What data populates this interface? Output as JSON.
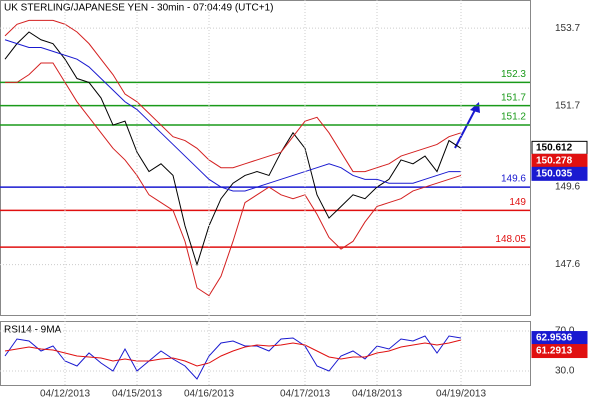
{
  "chart_data": [
    {
      "type": "line",
      "title": "UK STERLING/JAPANESE YEN - 30min - 07:04:49 (UTC+1)",
      "ylim": [
        146.3,
        154.4
      ],
      "yticks": [
        147.6,
        149.6,
        151.7,
        153.7
      ],
      "grid": true,
      "series": [
        {
          "name": "Price",
          "color": "#000000",
          "values": [
            152.9,
            153.3,
            153.6,
            153.4,
            153.3,
            152.9,
            152.4,
            152.3,
            151.9,
            151.2,
            151.3,
            150.5,
            150.0,
            150.2,
            149.9,
            148.6,
            147.6,
            148.6,
            149.3,
            149.7,
            149.9,
            150.0,
            149.9,
            150.5,
            151.0,
            150.6,
            149.4,
            148.8,
            149.1,
            149.4,
            149.3,
            149.6,
            149.8,
            150.3,
            150.2,
            150.4,
            150.0,
            150.8,
            150.6
          ]
        },
        {
          "name": "Upper",
          "color": "#d42020",
          "values": [
            153.5,
            153.8,
            153.9,
            153.9,
            153.9,
            153.8,
            153.6,
            153.3,
            152.9,
            152.5,
            152.0,
            151.8,
            151.5,
            151.2,
            150.9,
            150.8,
            150.6,
            150.3,
            150.1,
            150.1,
            150.2,
            150.3,
            150.4,
            150.5,
            150.9,
            151.3,
            151.4,
            151.0,
            150.5,
            150.0,
            150.0,
            150.1,
            150.2,
            150.4,
            150.5,
            150.6,
            150.7,
            150.9,
            151.0
          ]
        },
        {
          "name": "Lower",
          "color": "#d42020",
          "values": [
            152.3,
            152.3,
            152.5,
            152.8,
            152.8,
            152.3,
            151.8,
            151.4,
            151.0,
            150.6,
            150.3,
            149.9,
            149.4,
            149.2,
            149.0,
            148.2,
            147.0,
            146.8,
            147.3,
            148.2,
            149.2,
            149.4,
            149.6,
            149.4,
            149.3,
            149.4,
            148.9,
            148.3,
            148.0,
            148.2,
            148.7,
            149.1,
            149.2,
            149.3,
            149.5,
            149.6,
            149.7,
            149.8,
            149.9
          ]
        },
        {
          "name": "MA",
          "color": "#1a1ad0",
          "values": [
            153.4,
            153.3,
            153.2,
            153.2,
            153.1,
            153.0,
            152.9,
            152.7,
            152.4,
            152.1,
            151.8,
            151.6,
            151.3,
            151.0,
            150.7,
            150.4,
            150.1,
            149.8,
            149.6,
            149.5,
            149.5,
            149.6,
            149.7,
            149.8,
            149.9,
            150.0,
            150.1,
            150.2,
            150.1,
            149.9,
            149.8,
            149.8,
            149.7,
            149.7,
            149.7,
            149.8,
            149.9,
            150.0,
            150.0
          ]
        }
      ],
      "levels": [
        {
          "value": 152.3,
          "color": "#1a9a1a"
        },
        {
          "value": 151.7,
          "color": "#1a9a1a"
        },
        {
          "value": 151.2,
          "color": "#1a9a1a"
        },
        {
          "value": 149.6,
          "color": "#1a1ad0"
        },
        {
          "value": 149,
          "color": "#e01010"
        },
        {
          "value": 148.05,
          "color": "#e01010"
        }
      ],
      "markers": [
        {
          "value": 150.612,
          "color": "#ffffff"
        },
        {
          "value": 150.278,
          "color": "#e01010"
        },
        {
          "value": 150.035,
          "color": "#1a1ad0"
        }
      ]
    },
    {
      "type": "line",
      "title": "RSI14 - 9MA",
      "ylim": [
        16,
        79
      ],
      "yticks": [
        {
          "value": 30,
          "label": "30.0"
        },
        {
          "value": 70,
          "label": "70.0"
        }
      ],
      "categories": [
        null,
        null,
        null,
        null,
        null,
        "04/12/2013",
        null,
        null,
        null,
        null,
        null,
        "04/15/2013",
        null,
        null,
        null,
        null,
        null,
        "04/16/2013",
        null,
        null,
        null,
        null,
        null,
        null,
        null,
        "04/17/2013",
        null,
        null,
        null,
        null,
        null,
        "04/18/2013",
        null,
        null,
        null,
        null,
        null,
        null,
        "04/19/2013"
      ],
      "series": [
        {
          "name": "RSI14",
          "color": "#1a1ad0",
          "values": [
            45,
            62,
            60,
            50,
            55,
            40,
            35,
            48,
            38,
            30,
            52,
            30,
            40,
            50,
            42,
            35,
            22,
            45,
            58,
            60,
            55,
            55,
            50,
            62,
            63,
            55,
            35,
            30,
            45,
            50,
            42,
            55,
            52,
            62,
            60,
            65,
            48,
            65,
            63
          ]
        },
        {
          "name": "9MA",
          "color": "#e01010",
          "values": [
            50,
            52,
            54,
            52,
            51,
            48,
            45,
            44,
            43,
            40,
            42,
            40,
            40,
            42,
            43,
            40,
            35,
            38,
            45,
            50,
            54,
            56,
            55,
            56,
            58,
            56,
            50,
            44,
            42,
            44,
            44,
            48,
            50,
            54,
            56,
            58,
            56,
            58,
            61
          ]
        }
      ],
      "markers": [
        {
          "value": 62.9536,
          "color": "#1a1ad0"
        },
        {
          "value": 61.2913,
          "color": "#e01010"
        }
      ]
    }
  ]
}
